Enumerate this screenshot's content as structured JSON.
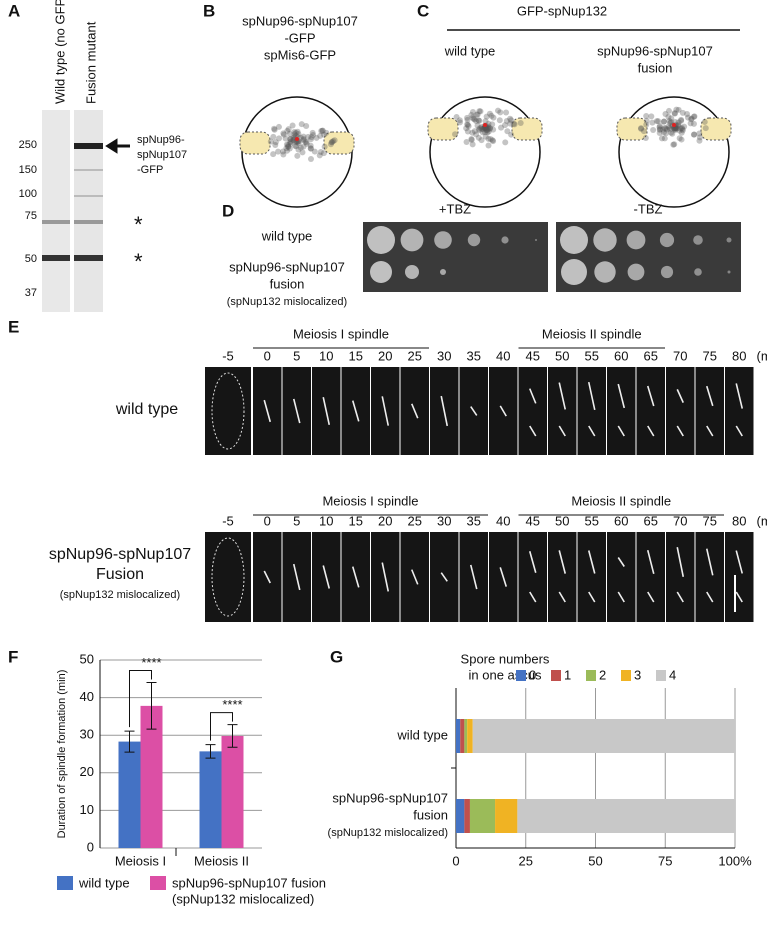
{
  "panels": {
    "A": {
      "label": "A",
      "lanes": [
        "Wild type (no GFP)",
        "Fusion mutant"
      ],
      "markers": [
        250,
        150,
        100,
        75,
        50,
        37
      ],
      "band_label": [
        "spNup96-",
        "spNup107",
        "-GFP"
      ],
      "asterisks": [
        "*",
        "*"
      ]
    },
    "B": {
      "label": "B",
      "title": [
        "spNup96-spNup107",
        "-GFP",
        "spMis6-GFP"
      ]
    },
    "C": {
      "label": "C",
      "title": "GFP-spNup132",
      "conditions": [
        [
          "wild type"
        ],
        [
          "spNup96-spNup107",
          "fusion"
        ]
      ]
    },
    "D": {
      "label": "D",
      "conditions": [
        "+TBZ",
        "-TBZ"
      ],
      "rows": [
        [
          "wild type"
        ],
        [
          "spNup96-spNup107",
          "fusion",
          "(spNup132 mislocalized)"
        ]
      ]
    },
    "E": {
      "label": "E",
      "rows": [
        {
          "name": [
            "wild type"
          ],
          "brackets": [
            "Meiosis I spindle",
            "Meiosis II spindle"
          ]
        },
        {
          "name": [
            "spNup96-spNup107",
            "Fusion",
            "(spNup132 mislocalized)"
          ],
          "brackets": [
            "Meiosis I spindle",
            "Meiosis II spindle"
          ]
        }
      ],
      "times": [
        -5,
        0,
        5,
        10,
        15,
        20,
        25,
        30,
        35,
        40,
        45,
        50,
        55,
        60,
        65,
        70,
        75,
        80
      ],
      "unit": "(min)"
    },
    "F": {
      "label": "F",
      "type": "bar",
      "ylabel": "Duration of spindle formation (min)",
      "categories": [
        "Meiosis I",
        "Meiosis II"
      ],
      "series": [
        {
          "name": "wild type",
          "color": "#4472c4",
          "values": [
            28.3,
            25.7
          ],
          "errors": [
            2.8,
            1.8
          ]
        },
        {
          "name": "spNup96-spNup107 fusion",
          "name_note": "(spNup132 mislocalized)",
          "color": "#dc4fa5",
          "values": [
            37.8,
            29.8
          ],
          "errors": [
            6.2,
            3.0
          ]
        }
      ],
      "ylim": [
        0,
        50
      ],
      "yticks": [
        0,
        10,
        20,
        30,
        40,
        50
      ],
      "grid": true,
      "significance": [
        "****",
        "****"
      ]
    },
    "G": {
      "label": "G",
      "type": "stacked_hbar",
      "legend_title": [
        "Spore numbers",
        "in one ascus"
      ],
      "categories": [
        [
          "wild type"
        ],
        [
          "spNup96-spNup107",
          "fusion",
          "(spNup132 mislocalized)"
        ]
      ],
      "series": [
        {
          "name": "0",
          "color": "#4472c4",
          "values": [
            1.5,
            3
          ]
        },
        {
          "name": "1",
          "color": "#c0504d",
          "values": [
            1.5,
            2
          ]
        },
        {
          "name": "2",
          "color": "#9bbb59",
          "values": [
            1,
            9
          ]
        },
        {
          "name": "3",
          "color": "#f0b323",
          "values": [
            2,
            8
          ]
        },
        {
          "name": "4",
          "color": "#c8c8c8",
          "values": [
            94,
            78
          ]
        }
      ],
      "xlim": [
        0,
        100
      ],
      "xticks": [
        0,
        25,
        50,
        75,
        {
          "value": 100,
          "label": "100%"
        }
      ],
      "grid": true
    }
  }
}
